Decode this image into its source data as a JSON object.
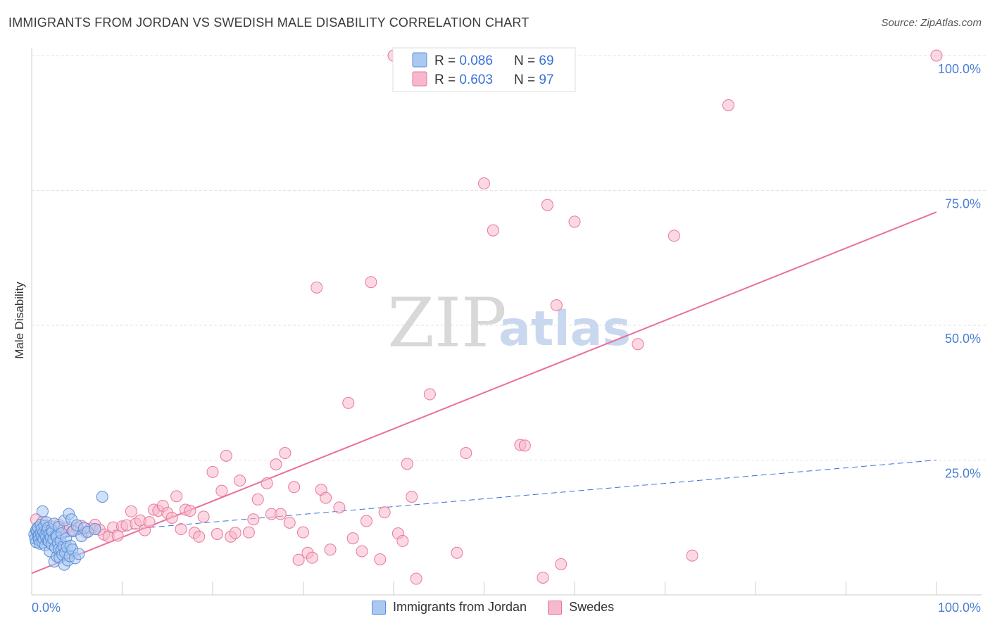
{
  "header": {
    "title": "IMMIGRANTS FROM JORDAN VS SWEDISH MALE DISABILITY CORRELATION CHART",
    "source": "Source: ZipAtlas.com"
  },
  "watermark": {
    "zip": "ZIP",
    "atlas": "atlas"
  },
  "colors": {
    "blue_fill": "#aac8f0",
    "blue_stroke": "#5b8fd9",
    "blue_line": "#3a72d8",
    "pink_fill": "#f7b8cb",
    "pink_stroke": "#e8789c",
    "pink_line": "#e8709a",
    "tick_label": "#4a7fd0",
    "grid": "#e3e3e3"
  },
  "chart_data": {
    "type": "scatter",
    "title": "IMMIGRANTS FROM JORDAN VS SWEDISH MALE DISABILITY CORRELATION CHART",
    "xlabel": "",
    "ylabel": "Male Disability",
    "xlim": [
      0,
      100
    ],
    "ylim": [
      0,
      100
    ],
    "x_tick_labels": [
      "0.0%",
      "100.0%"
    ],
    "y_ticks": [
      25,
      50,
      75,
      100
    ],
    "y_tick_labels": [
      "25.0%",
      "50.0%",
      "75.0%",
      "100.0%"
    ],
    "grid": true,
    "legend_stats": [
      {
        "r_label": "R = ",
        "r_value": "0.086",
        "n_label": "N = ",
        "n_value": "69"
      },
      {
        "r_label": "R = ",
        "r_value": "0.603",
        "n_label": "N = ",
        "n_value": "97"
      }
    ],
    "series": [
      {
        "name": "Immigrants from Jordan",
        "trend": {
          "x0": 0,
          "y0": 9.5,
          "x1": 6,
          "y1": 11.5,
          "dashed_x1": 100,
          "dashed_y1": 25.0
        },
        "points": [
          [
            0.3,
            11.2
          ],
          [
            0.4,
            10.5
          ],
          [
            0.5,
            12.0
          ],
          [
            0.5,
            9.8
          ],
          [
            0.6,
            11.8
          ],
          [
            0.7,
            10.9
          ],
          [
            0.7,
            12.5
          ],
          [
            0.8,
            11.0
          ],
          [
            0.8,
            10.2
          ],
          [
            0.9,
            9.5
          ],
          [
            1.0,
            11.5
          ],
          [
            1.0,
            13.0
          ],
          [
            1.1,
            10.8
          ],
          [
            1.1,
            12.2
          ],
          [
            1.2,
            9.7
          ],
          [
            1.2,
            15.5
          ],
          [
            1.3,
            11.6
          ],
          [
            1.3,
            10.4
          ],
          [
            1.4,
            12.8
          ],
          [
            1.5,
            11.1
          ],
          [
            1.5,
            9.2
          ],
          [
            1.6,
            10.7
          ],
          [
            1.6,
            13.5
          ],
          [
            1.7,
            11.9
          ],
          [
            1.8,
            10.1
          ],
          [
            1.8,
            12.4
          ],
          [
            1.9,
            9.9
          ],
          [
            2.0,
            11.3
          ],
          [
            2.0,
            8.1
          ],
          [
            2.1,
            10.6
          ],
          [
            2.2,
            12.1
          ],
          [
            2.2,
            9.4
          ],
          [
            2.3,
            11.7
          ],
          [
            2.4,
            10.3
          ],
          [
            2.5,
            13.2
          ],
          [
            2.5,
            6.2
          ],
          [
            2.6,
            8.8
          ],
          [
            2.7,
            11.0
          ],
          [
            2.8,
            10.8
          ],
          [
            2.8,
            7.1
          ],
          [
            2.9,
            9.6
          ],
          [
            3.0,
            8.5
          ],
          [
            3.0,
            12.6
          ],
          [
            3.1,
            6.9
          ],
          [
            3.2,
            10.0
          ],
          [
            3.3,
            8.3
          ],
          [
            3.3,
            11.4
          ],
          [
            3.4,
            7.5
          ],
          [
            3.5,
            9.0
          ],
          [
            3.6,
            5.6
          ],
          [
            3.6,
            13.8
          ],
          [
            3.7,
            7.8
          ],
          [
            3.8,
            10.5
          ],
          [
            3.9,
            8.9
          ],
          [
            4.0,
            6.4
          ],
          [
            4.1,
            15.0
          ],
          [
            4.2,
            7.2
          ],
          [
            4.3,
            9.1
          ],
          [
            4.4,
            14.0
          ],
          [
            4.5,
            8.4
          ],
          [
            4.6,
            11.8
          ],
          [
            4.8,
            6.8
          ],
          [
            5.0,
            12.9
          ],
          [
            5.2,
            7.6
          ],
          [
            5.5,
            10.9
          ],
          [
            5.8,
            12.4
          ],
          [
            6.2,
            11.7
          ],
          [
            7.0,
            12.2
          ],
          [
            7.8,
            18.2
          ]
        ]
      },
      {
        "name": "Swedes",
        "trend": {
          "x0": 0,
          "y0": 4.0,
          "x1": 100,
          "y1": 71.0
        },
        "points": [
          [
            0.5,
            14.0
          ],
          [
            0.8,
            12.5
          ],
          [
            1.0,
            11.0
          ],
          [
            1.2,
            13.5
          ],
          [
            1.5,
            12.0
          ],
          [
            1.8,
            10.5
          ],
          [
            2.0,
            12.8
          ],
          [
            2.5,
            11.5
          ],
          [
            3.0,
            13.0
          ],
          [
            3.5,
            12.2
          ],
          [
            4.0,
            12.6
          ],
          [
            4.5,
            11.8
          ],
          [
            5.0,
            12.4
          ],
          [
            5.5,
            12.8
          ],
          [
            6.0,
            11.6
          ],
          [
            6.5,
            12.3
          ],
          [
            7.0,
            13.0
          ],
          [
            7.5,
            12.1
          ],
          [
            8.0,
            11.2
          ],
          [
            8.5,
            10.8
          ],
          [
            9.0,
            12.5
          ],
          [
            9.5,
            11.0
          ],
          [
            10.0,
            12.7
          ],
          [
            10.5,
            12.9
          ],
          [
            11.0,
            15.5
          ],
          [
            11.5,
            13.2
          ],
          [
            12.0,
            13.8
          ],
          [
            12.5,
            12.0
          ],
          [
            13.0,
            13.5
          ],
          [
            13.5,
            15.8
          ],
          [
            14.0,
            15.6
          ],
          [
            14.5,
            16.5
          ],
          [
            15.0,
            15.2
          ],
          [
            15.5,
            14.3
          ],
          [
            16.0,
            18.3
          ],
          [
            16.5,
            12.2
          ],
          [
            17.0,
            15.8
          ],
          [
            17.5,
            15.6
          ],
          [
            18.0,
            11.5
          ],
          [
            18.5,
            10.8
          ],
          [
            19.0,
            14.5
          ],
          [
            20.0,
            22.8
          ],
          [
            20.5,
            11.3
          ],
          [
            21.0,
            19.3
          ],
          [
            21.5,
            25.8
          ],
          [
            22.0,
            10.8
          ],
          [
            22.5,
            11.5
          ],
          [
            23.0,
            21.2
          ],
          [
            24.0,
            11.6
          ],
          [
            24.5,
            14.0
          ],
          [
            25.0,
            17.7
          ],
          [
            26.0,
            20.7
          ],
          [
            26.5,
            15.0
          ],
          [
            27.0,
            24.2
          ],
          [
            27.5,
            15.0
          ],
          [
            28.0,
            26.3
          ],
          [
            28.5,
            13.4
          ],
          [
            29.0,
            20.0
          ],
          [
            29.5,
            6.5
          ],
          [
            30.0,
            11.6
          ],
          [
            30.5,
            7.8
          ],
          [
            31.0,
            6.9
          ],
          [
            31.5,
            57.0
          ],
          [
            32.0,
            19.5
          ],
          [
            32.5,
            18.0
          ],
          [
            33.0,
            8.4
          ],
          [
            34.0,
            16.2
          ],
          [
            35.0,
            35.6
          ],
          [
            35.5,
            10.5
          ],
          [
            36.5,
            8.1
          ],
          [
            37.0,
            13.7
          ],
          [
            37.5,
            58.0
          ],
          [
            38.5,
            6.6
          ],
          [
            39.0,
            15.3
          ],
          [
            40.0,
            100.0
          ],
          [
            40.5,
            11.4
          ],
          [
            41.0,
            10.0
          ],
          [
            41.5,
            24.3
          ],
          [
            42.0,
            18.2
          ],
          [
            42.5,
            3.0
          ],
          [
            44.0,
            37.2
          ],
          [
            47.0,
            7.8
          ],
          [
            48.0,
            26.3
          ],
          [
            50.0,
            76.3
          ],
          [
            51.0,
            67.6
          ],
          [
            54.0,
            27.8
          ],
          [
            54.5,
            27.7
          ],
          [
            56.5,
            3.2
          ],
          [
            57.0,
            72.3
          ],
          [
            58.0,
            53.7
          ],
          [
            58.5,
            5.7
          ],
          [
            60.0,
            69.2
          ],
          [
            67.0,
            46.5
          ],
          [
            71.0,
            66.6
          ],
          [
            73.0,
            7.3
          ],
          [
            77.0,
            90.8
          ],
          [
            100.0,
            100.0
          ]
        ]
      }
    ]
  }
}
